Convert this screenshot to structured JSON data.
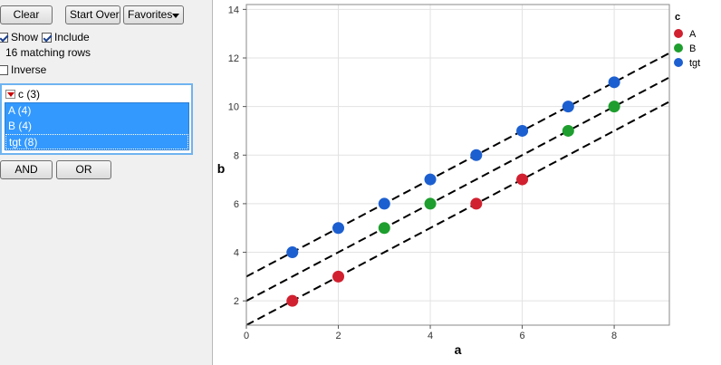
{
  "filter": {
    "clear_label": "Clear",
    "start_over_label": "Start Over",
    "favorites_label": "Favorites",
    "show_label": "Show",
    "show_checked": true,
    "include_label": "Include",
    "include_checked": true,
    "matching_rows_text": "16 matching rows",
    "inverse_label": "Inverse",
    "inverse_checked": false,
    "column_header": "c (3)",
    "levels": [
      {
        "label": "A (4)"
      },
      {
        "label": "B (4)"
      },
      {
        "label": "tgt (8)"
      }
    ],
    "and_label": "AND",
    "or_label": "OR"
  },
  "chart_data": {
    "type": "scatter",
    "xlabel": "a",
    "ylabel": "b",
    "xlim": [
      0,
      9.2
    ],
    "ylim": [
      1,
      14.2
    ],
    "x_ticks": [
      0,
      2,
      4,
      6,
      8
    ],
    "y_ticks": [
      2,
      4,
      6,
      8,
      10,
      12,
      14
    ],
    "grid": true,
    "legend_title": "c",
    "legend_position": "right",
    "series": [
      {
        "name": "A",
        "color": "#d1202f",
        "points": [
          [
            1,
            2
          ],
          [
            2,
            3
          ],
          [
            5,
            6
          ],
          [
            6,
            7
          ]
        ]
      },
      {
        "name": "B",
        "color": "#1e9e2e",
        "points": [
          [
            3,
            5
          ],
          [
            4,
            6
          ],
          [
            7,
            9
          ],
          [
            8,
            10
          ]
        ]
      },
      {
        "name": "tgt",
        "color": "#1c5fd0",
        "points": [
          [
            1,
            4
          ],
          [
            2,
            5
          ],
          [
            3,
            6
          ],
          [
            4,
            7
          ],
          [
            5,
            8
          ],
          [
            6,
            9
          ],
          [
            7,
            10
          ],
          [
            8,
            11
          ]
        ]
      }
    ],
    "fit_lines": [
      {
        "intercept": 1,
        "slope": 1
      },
      {
        "intercept": 2,
        "slope": 1
      },
      {
        "intercept": 3,
        "slope": 1
      }
    ]
  }
}
